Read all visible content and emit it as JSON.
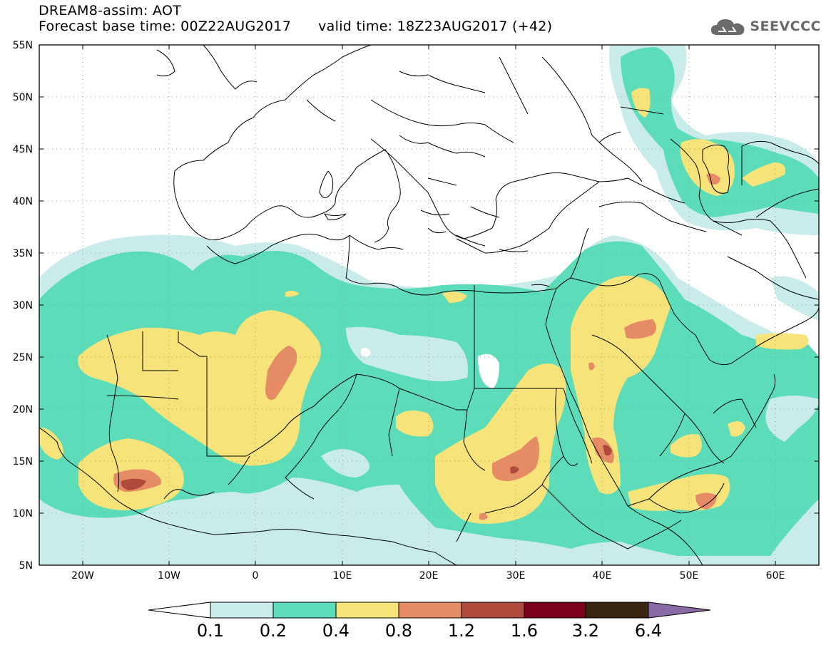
{
  "header": {
    "title": "DREAM8-assim: AOT",
    "base_time_label": "Forecast base time: 00Z22AUG2017",
    "valid_time_label": "valid time: 18Z23AUG2017 (+42)"
  },
  "logo": {
    "text": "SEEVCCC",
    "icon": "cloud-icon"
  },
  "axes": {
    "lat_labels": [
      "55N",
      "50N",
      "45N",
      "40N",
      "35N",
      "30N",
      "25N",
      "20N",
      "15N",
      "10N",
      "5N"
    ],
    "lon_labels": [
      "20W",
      "10W",
      "0",
      "10E",
      "20E",
      "30E",
      "40E",
      "50E",
      "60E"
    ]
  },
  "colorbar": {
    "labels": [
      "0.1",
      "0.2",
      "0.4",
      "0.8",
      "1.2",
      "1.6",
      "3.2",
      "6.4"
    ],
    "colors": [
      "#ffffff",
      "#c9ecea",
      "#5cdcb8",
      "#f6e47a",
      "#e58c67",
      "#b04a3c",
      "#7a001c",
      "#3a2412",
      "#8a6aa6"
    ]
  }
}
